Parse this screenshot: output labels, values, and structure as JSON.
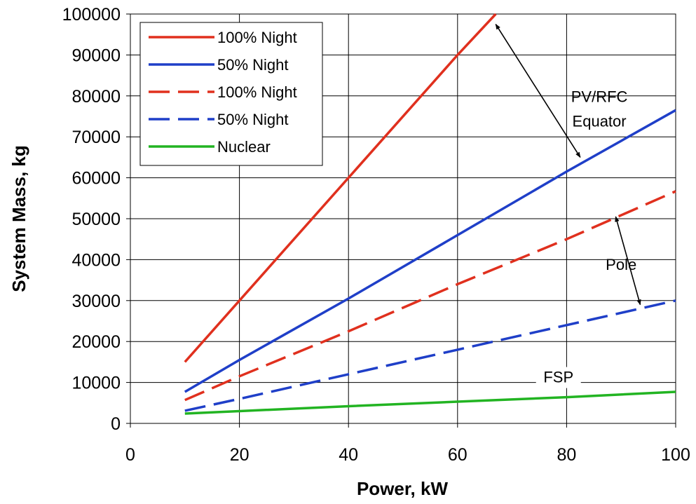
{
  "chart_data": {
    "type": "line",
    "title": "",
    "xlabel": "Power, kW",
    "ylabel": "System Mass, kg",
    "xlim": [
      0,
      100
    ],
    "ylim": [
      0,
      100000
    ],
    "xticks": [
      "0",
      "20",
      "40",
      "60",
      "80",
      "100"
    ],
    "yticks": [
      "0",
      "10000",
      "20000",
      "30000",
      "40000",
      "50000",
      "60000",
      "70000",
      "80000",
      "90000",
      "100000"
    ],
    "grid": true,
    "legend_position": "top-left",
    "series": [
      {
        "name": "100% Night",
        "color": "#e0301e",
        "dash": "solid",
        "x": [
          10,
          20,
          40,
          60,
          67
        ],
        "y": [
          15000,
          30000,
          60000,
          90000,
          100000
        ]
      },
      {
        "name": "50% Night",
        "color": "#1f3fc8",
        "dash": "solid",
        "x": [
          10,
          20,
          40,
          60,
          80,
          100
        ],
        "y": [
          7700,
          15500,
          30500,
          46000,
          61500,
          76500
        ]
      },
      {
        "name": "100% Night",
        "color": "#e0301e",
        "dash": "dashed",
        "x": [
          10,
          20,
          40,
          60,
          80,
          100
        ],
        "y": [
          5700,
          11500,
          22500,
          34000,
          45000,
          56700
        ]
      },
      {
        "name": "50% Night",
        "color": "#1f3fc8",
        "dash": "dashed",
        "x": [
          10,
          20,
          40,
          60,
          80,
          100
        ],
        "y": [
          3100,
          6000,
          12000,
          18000,
          24000,
          30000
        ]
      },
      {
        "name": "Nuclear",
        "color": "#22b422",
        "dash": "solid",
        "x": [
          10,
          20,
          40,
          60,
          80,
          100
        ],
        "y": [
          2400,
          3000,
          4200,
          5300,
          6400,
          7700
        ]
      }
    ],
    "annotations": [
      {
        "text": "PV/RFC",
        "x": 86,
        "y": 78500
      },
      {
        "text": "Equator",
        "x": 86,
        "y": 72500
      },
      {
        "text": "Pole",
        "x": 90,
        "y": 37500
      },
      {
        "text": "FSP",
        "x": 78.5,
        "y": 10000
      }
    ],
    "arrows": [
      {
        "label": "PV/RFC Equator",
        "from": [
          67,
          97500
        ],
        "to": [
          82.5,
          65000
        ]
      },
      {
        "label": "Pole",
        "from": [
          89,
          50500
        ],
        "to": [
          93.5,
          29000
        ]
      }
    ]
  }
}
